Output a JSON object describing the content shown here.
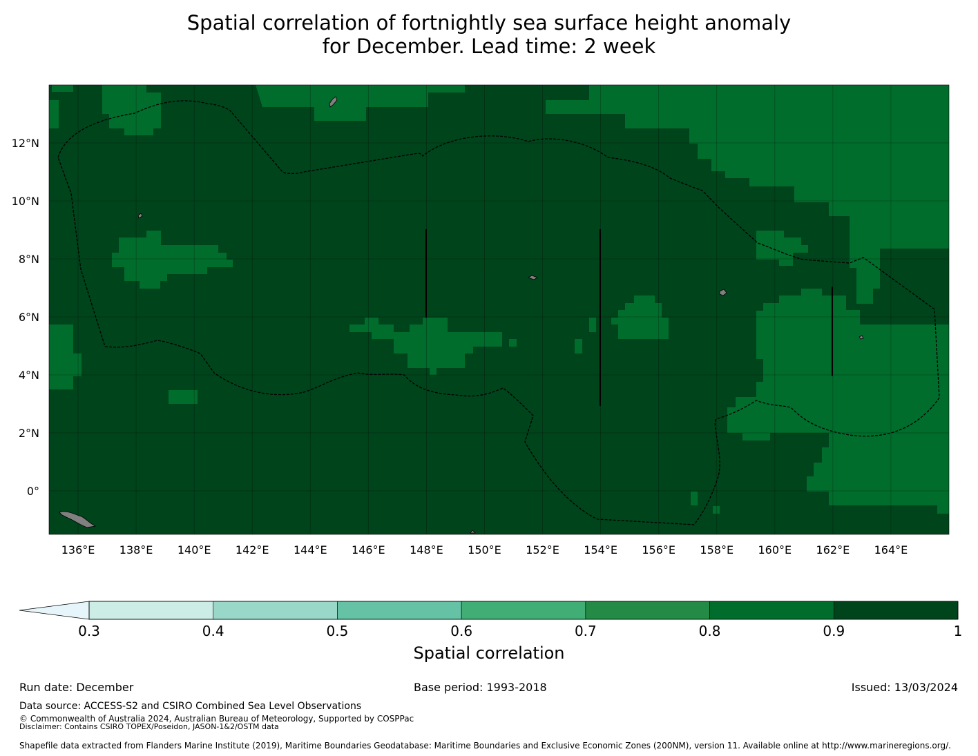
{
  "title": {
    "line1": "Spatial correlation of fortnightly sea surface height anomaly",
    "line2": "for December. Lead time: 2 week"
  },
  "map": {
    "lon_range": [
      135,
      166
    ],
    "lat_range": [
      -1.5,
      14
    ],
    "lon_ticks": [
      "136°E",
      "138°E",
      "140°E",
      "142°E",
      "144°E",
      "146°E",
      "148°E",
      "150°E",
      "152°E",
      "154°E",
      "156°E",
      "158°E",
      "160°E",
      "162°E",
      "164°E"
    ],
    "lat_ticks": [
      "12°N",
      "10°N",
      "8°N",
      "6°N",
      "4°N",
      "2°N",
      "0°"
    ],
    "colors": {
      "c_0_9_1": "#00441b",
      "c_0_8_0_9": "#006d2c",
      "c_0_7_0_8": "#238b45",
      "land": "#808080",
      "boundary": "#000000"
    }
  },
  "colorbar": {
    "label": "Spatial correlation",
    "ticks": [
      "0.3",
      "0.4",
      "0.5",
      "0.6",
      "0.7",
      "0.8",
      "0.9",
      "1"
    ],
    "under_color": "#e5f5f9",
    "colors": [
      "#ccece6",
      "#99d8c9",
      "#66c2a4",
      "#41ae76",
      "#238b45",
      "#006d2c",
      "#00441b"
    ]
  },
  "footer": {
    "run_date": "Run date: December",
    "base_period": "Base period: 1993-2018",
    "issued": "Issued: 13/03/2024",
    "data_source": "Data source: ACCESS-S2 and CSIRO Combined Sea Level Observations",
    "copyright": "© Commonwealth of Australia 2024, Australian Bureau of Meteorology, Supported by COSPPac",
    "disclaimer": "Disclaimer: Contains CSIRO TOPEX/Poseidon, JASON-1&2/OSTM data",
    "shapefile": "Shapefile data extracted from Flanders Marine Institute (2019), Maritime Boundaries Geodatabase: Maritime Boundaries and Exclusive Economic Zones (200NM), version 11. Available online at http://www.marineregions.org/."
  }
}
